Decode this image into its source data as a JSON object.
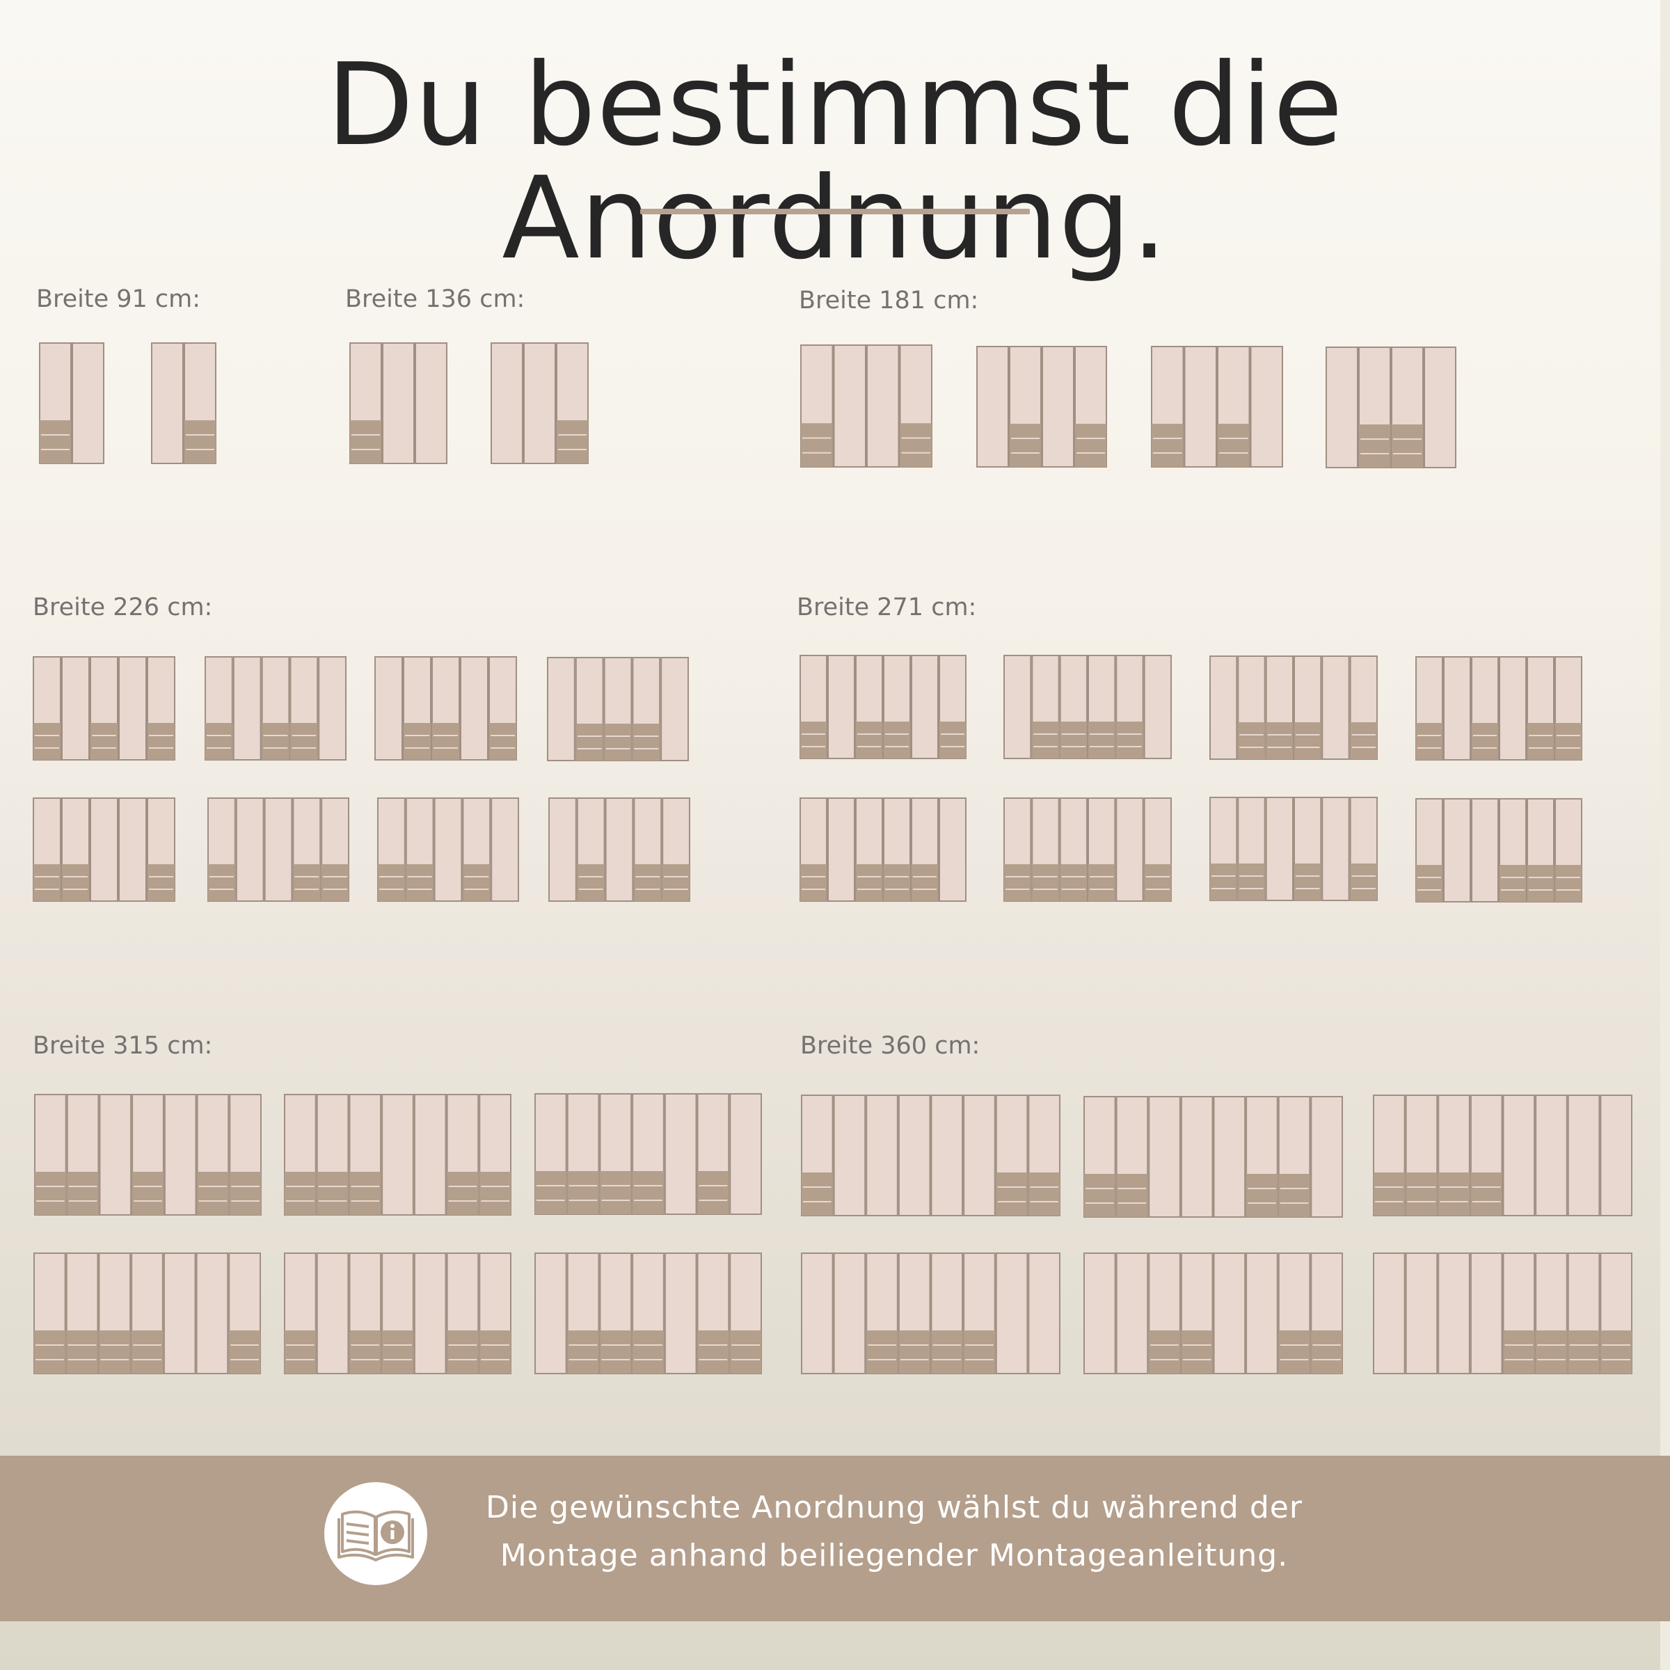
{
  "title": "Du bestimmst die Anordnung.",
  "groups": [
    {
      "label": "Breite 91 cm:"
    },
    {
      "label": "Breite 136 cm:"
    },
    {
      "label": "Breite 181 cm:"
    },
    {
      "label": "Breite 226 cm:"
    },
    {
      "label": "Breite 271 cm:"
    },
    {
      "label": "Breite 315 cm:"
    },
    {
      "label": "Breite 360 cm:"
    }
  ],
  "footer": {
    "line1": "Die gewünschte Anordnung wählst du während der",
    "line2": "Montage anhand beiliegender Montageanleitung.",
    "icon": "book-info-icon"
  },
  "colors": {
    "panel": "#e8d8cf",
    "drawer": "#b49f8c",
    "outline": "#a08f82",
    "footer": "#b49f8c",
    "title_text": "#262626",
    "label_text": "#767170"
  },
  "configurations": [
    {
      "group": 0,
      "doors": [
        1,
        0
      ]
    },
    {
      "group": 0,
      "doors": [
        0,
        1
      ]
    },
    {
      "group": 1,
      "doors": [
        1,
        0,
        0
      ]
    },
    {
      "group": 1,
      "doors": [
        0,
        0,
        1
      ]
    },
    {
      "group": 2,
      "doors": [
        1,
        0,
        0,
        1
      ]
    },
    {
      "group": 2,
      "doors": [
        0,
        1,
        0,
        1
      ]
    },
    {
      "group": 2,
      "doors": [
        1,
        0,
        1,
        0
      ]
    },
    {
      "group": 2,
      "doors": [
        0,
        1,
        1,
        0
      ]
    },
    {
      "group": 3,
      "doors": [
        1,
        0,
        1,
        0,
        1
      ]
    },
    {
      "group": 3,
      "doors": [
        1,
        0,
        1,
        1,
        0
      ]
    },
    {
      "group": 3,
      "doors": [
        0,
        1,
        1,
        0,
        1
      ]
    },
    {
      "group": 3,
      "doors": [
        0,
        1,
        1,
        1,
        0
      ]
    },
    {
      "group": 3,
      "doors": [
        1,
        1,
        0,
        0,
        1
      ]
    },
    {
      "group": 3,
      "doors": [
        1,
        0,
        0,
        1,
        1
      ]
    },
    {
      "group": 3,
      "doors": [
        1,
        1,
        0,
        1,
        0
      ]
    },
    {
      "group": 3,
      "doors": [
        0,
        1,
        0,
        1,
        1
      ]
    },
    {
      "group": 4,
      "doors": [
        1,
        0,
        1,
        1,
        0,
        1
      ]
    },
    {
      "group": 4,
      "doors": [
        0,
        1,
        1,
        1,
        1,
        0
      ]
    },
    {
      "group": 4,
      "doors": [
        0,
        1,
        1,
        1,
        0,
        1
      ]
    },
    {
      "group": 4,
      "doors": [
        1,
        0,
        1,
        0,
        1,
        1
      ]
    },
    {
      "group": 4,
      "doors": [
        1,
        0,
        1,
        1,
        1,
        0
      ]
    },
    {
      "group": 4,
      "doors": [
        1,
        1,
        1,
        1,
        0,
        1
      ]
    },
    {
      "group": 4,
      "doors": [
        1,
        1,
        0,
        1,
        0,
        1
      ]
    },
    {
      "group": 4,
      "doors": [
        1,
        0,
        0,
        1,
        1,
        1
      ]
    },
    {
      "group": 5,
      "doors": [
        1,
        1,
        0,
        1,
        0,
        1,
        1
      ]
    },
    {
      "group": 5,
      "doors": [
        1,
        1,
        1,
        0,
        0,
        1,
        1
      ]
    },
    {
      "group": 5,
      "doors": [
        1,
        1,
        1,
        1,
        0,
        1,
        0
      ]
    },
    {
      "group": 5,
      "doors": [
        1,
        1,
        1,
        1,
        0,
        0,
        1
      ]
    },
    {
      "group": 5,
      "doors": [
        1,
        0,
        1,
        1,
        0,
        1,
        1
      ]
    },
    {
      "group": 5,
      "doors": [
        0,
        1,
        1,
        1,
        0,
        1,
        1
      ]
    },
    {
      "group": 6,
      "doors": [
        1,
        0,
        0,
        0,
        0,
        0,
        1,
        1
      ]
    },
    {
      "group": 6,
      "doors": [
        1,
        1,
        0,
        0,
        0,
        1,
        1,
        0
      ]
    },
    {
      "group": 6,
      "doors": [
        1,
        1,
        1,
        1,
        0,
        0,
        0,
        0
      ]
    },
    {
      "group": 6,
      "doors": [
        0,
        0,
        1,
        1,
        1,
        1,
        0,
        0
      ]
    },
    {
      "group": 6,
      "doors": [
        0,
        0,
        1,
        1,
        0,
        0,
        1,
        1
      ]
    },
    {
      "group": 6,
      "doors": [
        0,
        0,
        0,
        0,
        1,
        1,
        1,
        1
      ]
    }
  ]
}
